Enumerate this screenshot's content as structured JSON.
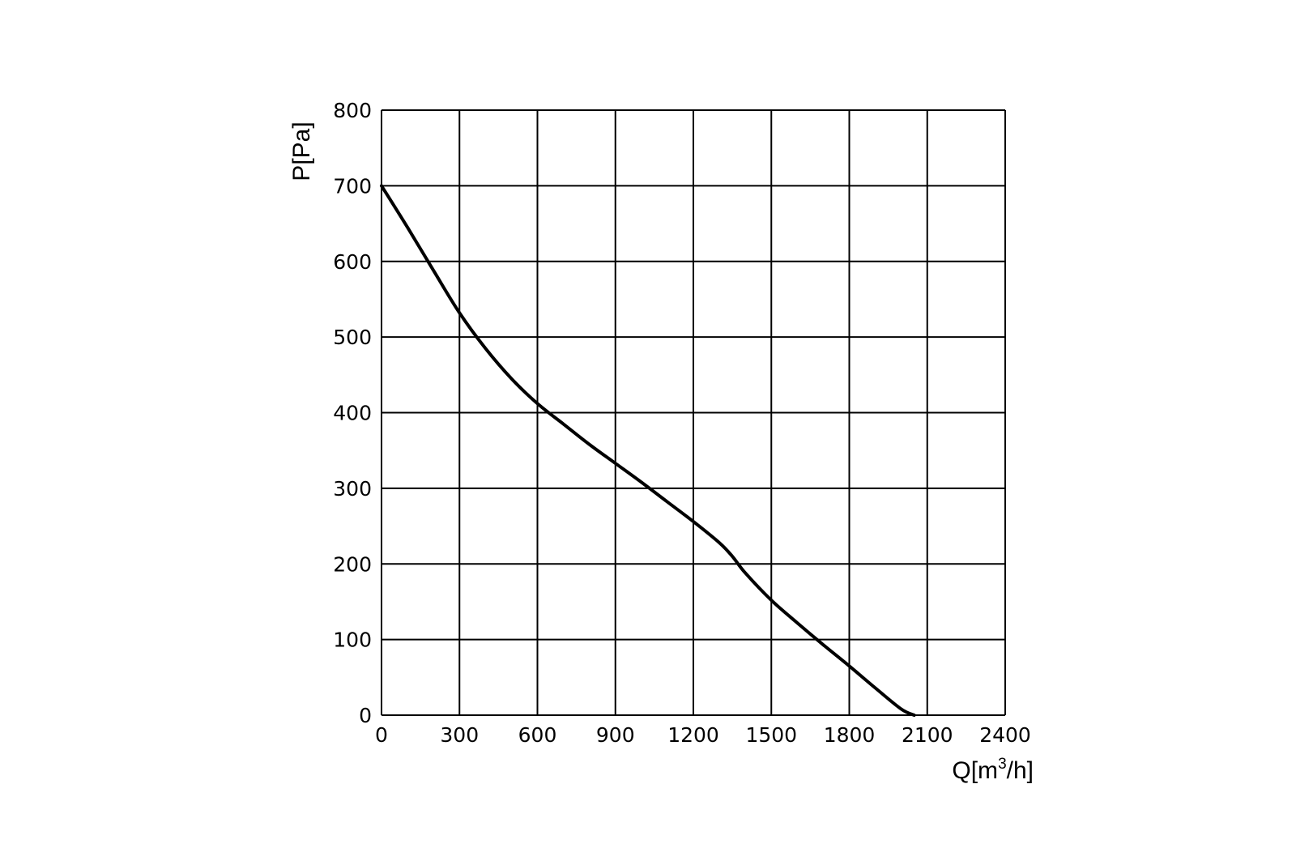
{
  "chart_data": {
    "type": "line",
    "title": "",
    "xlabel": {
      "prefix": "Q[m",
      "superscript": "3",
      "suffix": "/h]"
    },
    "ylabel": "P[Pa]",
    "xlim": [
      0,
      2400
    ],
    "ylim": [
      0,
      800
    ],
    "x_ticks": [
      0,
      300,
      600,
      900,
      1200,
      1500,
      1800,
      2100,
      2400
    ],
    "y_ticks": [
      0,
      100,
      200,
      300,
      400,
      500,
      600,
      700,
      800
    ],
    "x_tick_labels": [
      "0",
      "300",
      "600",
      "900",
      "1200",
      "1500",
      "1800",
      "2100",
      "2400"
    ],
    "y_tick_labels": [
      "0",
      "100",
      "200",
      "300",
      "400",
      "500",
      "600",
      "700",
      "800"
    ],
    "grid": true,
    "series": [
      {
        "color": "#000000",
        "x": [
          0,
          100,
          200,
          300,
          400,
          500,
          600,
          700,
          800,
          900,
          1000,
          1100,
          1200,
          1300,
          1350,
          1400,
          1500,
          1600,
          1700,
          1800,
          1900,
          2000,
          2050
        ],
        "y": [
          700,
          645,
          588,
          532,
          485,
          445,
          412,
          385,
          358,
          333,
          308,
          282,
          256,
          228,
          210,
          188,
          152,
          122,
          93,
          65,
          36,
          8,
          0
        ]
      }
    ]
  }
}
